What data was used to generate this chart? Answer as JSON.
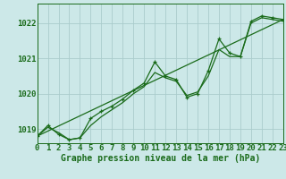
{
  "title": "Graphe pression niveau de la mer (hPa)",
  "bg_color": "#cce8e8",
  "grid_color": "#aacccc",
  "line_color": "#1a6b1a",
  "xlim": [
    0,
    23
  ],
  "ylim": [
    1018.6,
    1022.55
  ],
  "yticks": [
    1019,
    1020,
    1021,
    1022
  ],
  "xticks": [
    0,
    1,
    2,
    3,
    4,
    5,
    6,
    7,
    8,
    9,
    10,
    11,
    12,
    13,
    14,
    15,
    16,
    17,
    18,
    19,
    20,
    21,
    22,
    23
  ],
  "series_main": [
    1018.8,
    1019.1,
    1018.85,
    1018.7,
    1018.75,
    1019.3,
    1019.5,
    1019.65,
    1019.85,
    1020.1,
    1020.3,
    1020.9,
    1020.5,
    1020.4,
    1019.9,
    1020.0,
    1020.65,
    1021.55,
    1021.15,
    1021.05,
    1022.05,
    1022.2,
    1022.15,
    1022.1
  ],
  "series_smooth": [
    1018.8,
    1019.05,
    1018.9,
    1018.7,
    1018.75,
    1019.1,
    1019.35,
    1019.55,
    1019.75,
    1020.0,
    1020.2,
    1020.6,
    1020.45,
    1020.35,
    1019.95,
    1020.05,
    1020.5,
    1021.25,
    1021.05,
    1021.05,
    1022.0,
    1022.15,
    1022.1,
    1022.05
  ],
  "trend_x": [
    0,
    23
  ],
  "trend_y": [
    1018.8,
    1022.1
  ],
  "tick_fontsize": 6.5,
  "title_fontsize": 7
}
